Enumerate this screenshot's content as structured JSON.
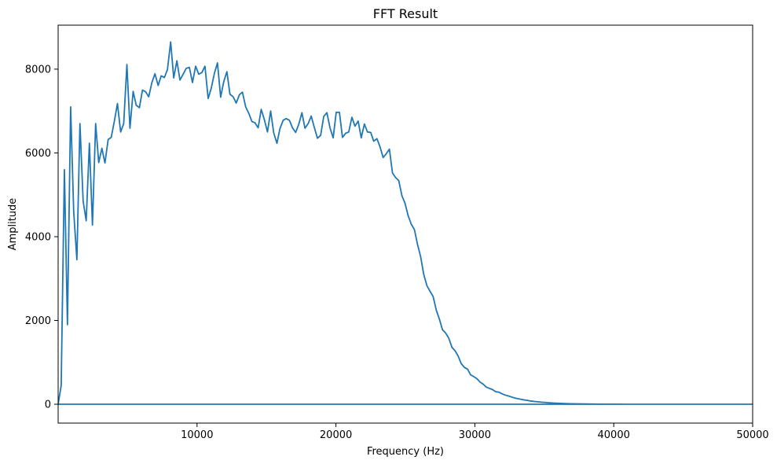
{
  "chart_data": {
    "type": "line",
    "title": "FFT Result",
    "xlabel": "Frequency (Hz)",
    "ylabel": "Amplitude",
    "xlim": [
      0,
      50000
    ],
    "ylim": [
      -450,
      9050
    ],
    "xticks": [
      10000,
      20000,
      30000,
      40000,
      50000
    ],
    "yticks": [
      0,
      2000,
      4000,
      6000,
      8000
    ],
    "xtick_labels": [
      "10000",
      "20000",
      "30000",
      "40000",
      "50000"
    ],
    "ytick_labels": [
      "0",
      "2000",
      "4000",
      "6000",
      "8000"
    ],
    "grid": false,
    "legend": "none",
    "colors": {
      "series": "#1f77b4"
    },
    "series": [
      {
        "points": [
          [
            0,
            0
          ],
          [
            220,
            450
          ],
          [
            450,
            5600
          ],
          [
            670,
            1900
          ],
          [
            900,
            7100
          ],
          [
            1120,
            4600
          ],
          [
            1350,
            3450
          ],
          [
            1570,
            6700
          ],
          [
            1800,
            4850
          ],
          [
            2020,
            4380
          ],
          [
            2250,
            6230
          ],
          [
            2470,
            4280
          ],
          [
            2700,
            6700
          ],
          [
            2920,
            5770
          ],
          [
            3150,
            6110
          ],
          [
            3370,
            5760
          ],
          [
            3600,
            6320
          ],
          [
            3820,
            6370
          ],
          [
            4050,
            6760
          ],
          [
            4270,
            7180
          ],
          [
            4500,
            6500
          ],
          [
            4720,
            6700
          ],
          [
            4950,
            8110
          ],
          [
            5170,
            6590
          ],
          [
            5400,
            7470
          ],
          [
            5620,
            7140
          ],
          [
            5850,
            7080
          ],
          [
            6070,
            7500
          ],
          [
            6300,
            7460
          ],
          [
            6520,
            7340
          ],
          [
            6750,
            7680
          ],
          [
            6970,
            7890
          ],
          [
            7200,
            7610
          ],
          [
            7420,
            7840
          ],
          [
            7650,
            7800
          ],
          [
            7870,
            7990
          ],
          [
            8100,
            8650
          ],
          [
            8320,
            7790
          ],
          [
            8550,
            8200
          ],
          [
            8770,
            7740
          ],
          [
            9000,
            7880
          ],
          [
            9220,
            8020
          ],
          [
            9450,
            8040
          ],
          [
            9670,
            7680
          ],
          [
            9900,
            8070
          ],
          [
            10120,
            7880
          ],
          [
            10350,
            7920
          ],
          [
            10570,
            8070
          ],
          [
            10800,
            7300
          ],
          [
            11020,
            7540
          ],
          [
            11250,
            7900
          ],
          [
            11470,
            8150
          ],
          [
            11700,
            7330
          ],
          [
            11920,
            7700
          ],
          [
            12150,
            7940
          ],
          [
            12370,
            7400
          ],
          [
            12600,
            7340
          ],
          [
            12820,
            7190
          ],
          [
            13050,
            7390
          ],
          [
            13270,
            7450
          ],
          [
            13500,
            7100
          ],
          [
            13720,
            6950
          ],
          [
            13950,
            6750
          ],
          [
            14170,
            6720
          ],
          [
            14400,
            6600
          ],
          [
            14620,
            7040
          ],
          [
            14850,
            6790
          ],
          [
            15070,
            6500
          ],
          [
            15300,
            7000
          ],
          [
            15520,
            6480
          ],
          [
            15750,
            6230
          ],
          [
            15970,
            6580
          ],
          [
            16200,
            6780
          ],
          [
            16420,
            6820
          ],
          [
            16650,
            6780
          ],
          [
            16870,
            6600
          ],
          [
            17100,
            6490
          ],
          [
            17320,
            6680
          ],
          [
            17550,
            6960
          ],
          [
            17770,
            6590
          ],
          [
            18000,
            6700
          ],
          [
            18220,
            6880
          ],
          [
            18450,
            6600
          ],
          [
            18670,
            6350
          ],
          [
            18900,
            6420
          ],
          [
            19120,
            6870
          ],
          [
            19350,
            6960
          ],
          [
            19570,
            6600
          ],
          [
            19800,
            6360
          ],
          [
            20020,
            6970
          ],
          [
            20250,
            6970
          ],
          [
            20470,
            6370
          ],
          [
            20700,
            6470
          ],
          [
            20920,
            6500
          ],
          [
            21150,
            6850
          ],
          [
            21370,
            6640
          ],
          [
            21600,
            6760
          ],
          [
            21820,
            6360
          ],
          [
            22050,
            6690
          ],
          [
            22270,
            6500
          ],
          [
            22500,
            6490
          ],
          [
            22720,
            6280
          ],
          [
            22950,
            6340
          ],
          [
            23170,
            6150
          ],
          [
            23400,
            5890
          ],
          [
            23620,
            5980
          ],
          [
            23850,
            6090
          ],
          [
            24070,
            5520
          ],
          [
            24300,
            5410
          ],
          [
            24520,
            5340
          ],
          [
            24750,
            4980
          ],
          [
            24970,
            4800
          ],
          [
            25200,
            4500
          ],
          [
            25420,
            4300
          ],
          [
            25650,
            4170
          ],
          [
            25870,
            3820
          ],
          [
            26100,
            3520
          ],
          [
            26320,
            3100
          ],
          [
            26550,
            2830
          ],
          [
            26770,
            2700
          ],
          [
            27000,
            2570
          ],
          [
            27220,
            2250
          ],
          [
            27450,
            2030
          ],
          [
            27670,
            1780
          ],
          [
            27900,
            1700
          ],
          [
            28120,
            1580
          ],
          [
            28350,
            1360
          ],
          [
            28570,
            1280
          ],
          [
            28800,
            1150
          ],
          [
            29020,
            970
          ],
          [
            29250,
            880
          ],
          [
            29470,
            840
          ],
          [
            29700,
            700
          ],
          [
            29920,
            660
          ],
          [
            30150,
            610
          ],
          [
            30370,
            530
          ],
          [
            30600,
            480
          ],
          [
            30820,
            410
          ],
          [
            31050,
            380
          ],
          [
            31270,
            350
          ],
          [
            31500,
            300
          ],
          [
            31720,
            290
          ],
          [
            31950,
            250
          ],
          [
            32170,
            220
          ],
          [
            32400,
            200
          ],
          [
            32620,
            175
          ],
          [
            32850,
            150
          ],
          [
            33070,
            135
          ],
          [
            33300,
            120
          ],
          [
            33520,
            105
          ],
          [
            33750,
            95
          ],
          [
            33970,
            80
          ],
          [
            34200,
            70
          ],
          [
            34420,
            62
          ],
          [
            34650,
            55
          ],
          [
            34870,
            48
          ],
          [
            35100,
            42
          ],
          [
            35320,
            36
          ],
          [
            35550,
            31
          ],
          [
            35770,
            27
          ],
          [
            36000,
            23
          ],
          [
            36500,
            17
          ],
          [
            37000,
            12
          ],
          [
            37500,
            9
          ],
          [
            38000,
            6
          ],
          [
            38500,
            4
          ],
          [
            39000,
            3
          ],
          [
            40000,
            2
          ],
          [
            41000,
            1
          ],
          [
            43000,
            1
          ],
          [
            46000,
            0
          ],
          [
            50000,
            0
          ],
          [
            -49000,
            0
          ],
          [
            0,
            0
          ]
        ]
      }
    ]
  }
}
